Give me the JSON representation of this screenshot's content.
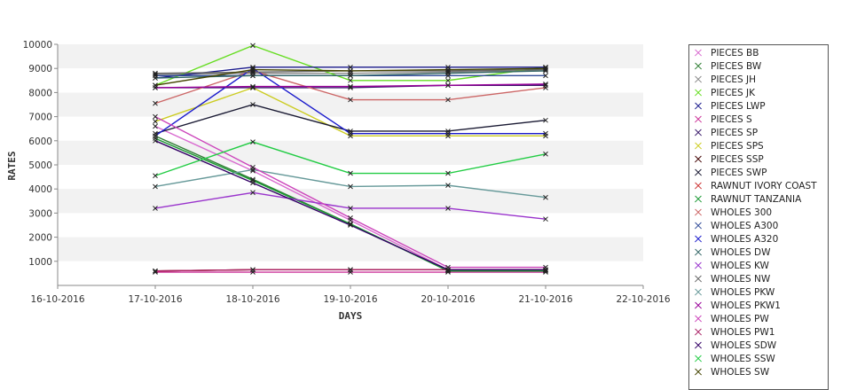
{
  "chart_data": {
    "type": "line",
    "xlabel": "DAYS",
    "ylabel": "RATES",
    "x_ticks": [
      "16-10-2016",
      "17-10-2016",
      "18-10-2016",
      "19-10-2016",
      "20-10-2016",
      "21-10-2016",
      "22-10-2016"
    ],
    "categories": [
      "17-10-2016",
      "18-10-2016",
      "19-10-2016",
      "20-10-2016",
      "21-10-2016"
    ],
    "y_ticks": [
      1000,
      2000,
      3000,
      4000,
      5000,
      6000,
      7000,
      8000,
      9000,
      10000
    ],
    "ylim": [
      0,
      10000
    ],
    "grid": "horizontal bands",
    "legend_position": "right",
    "series": [
      {
        "name": "PIECES BB",
        "color": "#d96bd0",
        "values": [
          6600,
          4750,
          2700,
          650,
          650
        ]
      },
      {
        "name": "PIECES BW",
        "color": "#2e7d32",
        "values": [
          6200,
          4400,
          2550,
          600,
          600
        ]
      },
      {
        "name": "PIECES JH",
        "color": "#8a8a8a",
        "values": [
          8750,
          8800,
          8800,
          8850,
          8900
        ]
      },
      {
        "name": "PIECES JK",
        "color": "#66dd22",
        "values": [
          8300,
          9950,
          8500,
          8500,
          9050
        ]
      },
      {
        "name": "PIECES LWP",
        "color": "#1a1a8c",
        "values": [
          8600,
          9050,
          9050,
          9050,
          9050
        ]
      },
      {
        "name": "PIECES S",
        "color": "#cc3399",
        "values": [
          550,
          550,
          550,
          550,
          550
        ]
      },
      {
        "name": "PIECES SP",
        "color": "#3a1a6b",
        "values": [
          8200,
          8200,
          8200,
          8300,
          8300
        ]
      },
      {
        "name": "PIECES SPS",
        "color": "#cccc22",
        "values": [
          6800,
          8200,
          6200,
          6200,
          6200
        ]
      },
      {
        "name": "PIECES SSP",
        "color": "#400000",
        "values": [
          600,
          650,
          650,
          650,
          650
        ]
      },
      {
        "name": "PIECES SWP",
        "color": "#1a1a33",
        "values": [
          6300,
          7500,
          6400,
          6400,
          6850
        ]
      },
      {
        "name": "RAWNUT IVORY COAST",
        "color": "#cc3333",
        "values": [
          600,
          650,
          650,
          650,
          650
        ]
      },
      {
        "name": "RAWNUT TANZANIA",
        "color": "#1a9933",
        "values": [
          6100,
          4350,
          2550,
          600,
          600
        ]
      },
      {
        "name": "WHOLES 300",
        "color": "#cc6666",
        "values": [
          7550,
          8900,
          7700,
          7700,
          8200
        ]
      },
      {
        "name": "WHOLES A300",
        "color": "#334d99",
        "values": [
          8700,
          8700,
          8700,
          8700,
          8700
        ]
      },
      {
        "name": "WHOLES A320",
        "color": "#1a1acc",
        "values": [
          6200,
          9000,
          6300,
          6300,
          6300
        ]
      },
      {
        "name": "WHOLES DW",
        "color": "#336666",
        "values": [
          8600,
          8700,
          8700,
          8800,
          8900
        ]
      },
      {
        "name": "WHOLES KW",
        "color": "#9933cc",
        "values": [
          3200,
          3850,
          3200,
          3200,
          2750
        ]
      },
      {
        "name": "WHOLES NW",
        "color": "#666666",
        "values": [
          8800,
          8850,
          8900,
          8900,
          8950
        ]
      },
      {
        "name": "WHOLES PKW",
        "color": "#669999",
        "values": [
          4100,
          4800,
          4100,
          4150,
          3650
        ]
      },
      {
        "name": "WHOLES PKW1",
        "color": "#990099",
        "values": [
          8200,
          8250,
          8250,
          8300,
          8350
        ]
      },
      {
        "name": "WHOLES PW",
        "color": "#cc44bb",
        "values": [
          7000,
          4900,
          2800,
          750,
          750
        ]
      },
      {
        "name": "WHOLES PW1",
        "color": "#aa2266",
        "values": [
          600,
          650,
          650,
          650,
          650
        ]
      },
      {
        "name": "WHOLES SDW",
        "color": "#330066",
        "values": [
          6000,
          4250,
          2500,
          650,
          650
        ]
      },
      {
        "name": "WHOLES SSW",
        "color": "#22cc44",
        "values": [
          4550,
          5950,
          4650,
          4650,
          5450
        ]
      },
      {
        "name": "WHOLES SW",
        "color": "#444400",
        "values": [
          8300,
          8950,
          8900,
          8950,
          9000
        ]
      }
    ]
  }
}
